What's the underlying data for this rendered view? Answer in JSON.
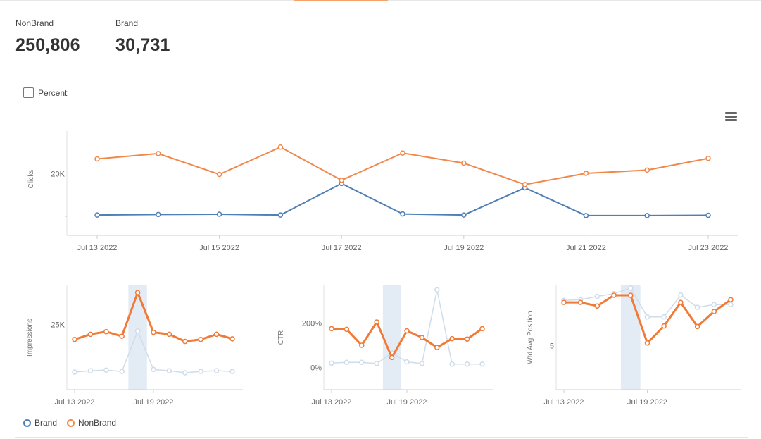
{
  "kpis": [
    {
      "label": "NonBrand",
      "value": "250,806"
    },
    {
      "label": "Brand",
      "value": "30,731"
    }
  ],
  "percent_label": "Percent",
  "legend": [
    {
      "name": "Brand",
      "color": "#4f7fb5"
    },
    {
      "name": "NonBrand",
      "color": "#f2874a"
    }
  ],
  "colors": {
    "brand": "#4f7fb5",
    "nonbrand": "#f2874a",
    "brand_faded": "#cfdcea",
    "nonbrand_bold": "#f07a36",
    "highlight": "#e3ebf5"
  },
  "chart_data": [
    {
      "type": "line",
      "ylabel": "Clicks",
      "x": [
        "Jul 13 2022",
        "Jul 14 2022",
        "Jul 15 2022",
        "Jul 16 2022",
        "Jul 17 2022",
        "Jul 18 2022",
        "Jul 19 2022",
        "Jul 20 2022",
        "Jul 21 2022",
        "Jul 22 2022",
        "Jul 23 2022"
      ],
      "xticks": [
        "Jul 13 2022",
        "Jul 15 2022",
        "Jul 17 2022",
        "Jul 19 2022",
        "Jul 21 2022",
        "Jul 23 2022"
      ],
      "yticks": [
        {
          "value": 20000,
          "label": "20K"
        }
      ],
      "ylim": [
        8500,
        28000
      ],
      "series": [
        {
          "name": "NonBrand",
          "values": [
            22800,
            23800,
            19900,
            25000,
            18800,
            23900,
            22000,
            18000,
            20100,
            20700,
            22900
          ]
        },
        {
          "name": "Brand",
          "values": [
            12300,
            12400,
            12450,
            12300,
            18200,
            12500,
            12300,
            17400,
            12200,
            12200,
            12250
          ]
        }
      ]
    },
    {
      "type": "line",
      "ylabel": "Impressions",
      "xticks": [
        "Jul 13 2022",
        "Jul 19 2022"
      ],
      "yticks": [
        {
          "value": 25000,
          "label": "25K"
        }
      ],
      "ylim": [
        15000,
        31000
      ],
      "highlight_index": 4,
      "series": [
        {
          "name": "NonBrand",
          "values": [
            22700,
            23500,
            23900,
            23200,
            29900,
            23800,
            23500,
            22400,
            22700,
            23500,
            22800
          ]
        },
        {
          "name": "Brand",
          "values": [
            17700,
            17900,
            18000,
            17800,
            24000,
            18100,
            17900,
            17600,
            17800,
            17900,
            17800
          ]
        }
      ]
    },
    {
      "type": "line",
      "ylabel": "CTR",
      "xticks": [
        "Jul 13 2022",
        "Jul 19 2022"
      ],
      "yticks": [
        {
          "value": 0,
          "label": "0%"
        },
        {
          "value": 200,
          "label": "200%"
        }
      ],
      "ylim": [
        -100,
        370
      ],
      "highlight_index": 4,
      "series": [
        {
          "name": "NonBrand",
          "values": [
            175,
            172,
            100,
            205,
            45,
            165,
            135,
            90,
            130,
            128,
            175
          ]
        },
        {
          "name": "Brand",
          "values": [
            20,
            23,
            23,
            18,
            65,
            25,
            18,
            350,
            15,
            15,
            15
          ]
        }
      ]
    },
    {
      "type": "line",
      "ylabel": "Wtd Avg Position",
      "xticks": [
        "Jul 13 2022",
        "Jul 19 2022"
      ],
      "yticks": [
        {
          "value": 5,
          "label": "5"
        }
      ],
      "ylim": [
        3.4,
        7.2
      ],
      "highlight_index": 4,
      "series": [
        {
          "name": "NonBrand",
          "values": [
            6.58,
            6.58,
            6.45,
            6.84,
            6.84,
            5.1,
            5.72,
            6.58,
            5.7,
            6.25,
            6.68
          ]
        },
        {
          "name": "Brand",
          "values": [
            6.65,
            6.68,
            6.8,
            6.9,
            7.1,
            6.05,
            6.05,
            6.85,
            6.4,
            6.5,
            6.5
          ]
        }
      ]
    }
  ]
}
